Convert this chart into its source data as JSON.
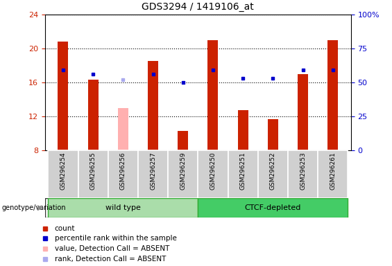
{
  "title": "GDS3294 / 1419106_at",
  "samples": [
    "GSM296254",
    "GSM296255",
    "GSM296256",
    "GSM296257",
    "GSM296259",
    "GSM296250",
    "GSM296251",
    "GSM296252",
    "GSM296253",
    "GSM296261"
  ],
  "red_bars": [
    20.8,
    16.3,
    null,
    18.5,
    10.3,
    21.0,
    12.7,
    11.7,
    17.0,
    21.0
  ],
  "pink_bars": [
    null,
    null,
    13.0,
    null,
    null,
    null,
    null,
    null,
    null,
    null
  ],
  "blue_markers": [
    17.5,
    17.0,
    null,
    17.0,
    16.0,
    17.5,
    16.5,
    16.5,
    17.5,
    17.5
  ],
  "light_blue_markers": [
    null,
    null,
    16.3,
    null,
    null,
    null,
    null,
    null,
    null,
    null
  ],
  "ylim": [
    8,
    24
  ],
  "yticks": [
    8,
    12,
    16,
    20,
    24
  ],
  "y2ticks": [
    0,
    25,
    50,
    75,
    100
  ],
  "y2labels": [
    "0",
    "25",
    "50",
    "75",
    "100%"
  ],
  "group_labels": [
    "wild type",
    "CTCF-depleted"
  ],
  "bar_width": 0.35,
  "red_color": "#cc2200",
  "pink_color": "#ffb0b0",
  "blue_color": "#0000cc",
  "light_blue_color": "#aaaaee",
  "plot_bg": "#ffffff",
  "tick_area_bg": "#cccccc",
  "genotype_label": "genotype/variation",
  "legend_items": [
    {
      "label": "count",
      "color": "#cc2200"
    },
    {
      "label": "percentile rank within the sample",
      "color": "#0000cc"
    },
    {
      "label": "value, Detection Call = ABSENT",
      "color": "#ffb0b0"
    },
    {
      "label": "rank, Detection Call = ABSENT",
      "color": "#aaaaee"
    }
  ]
}
